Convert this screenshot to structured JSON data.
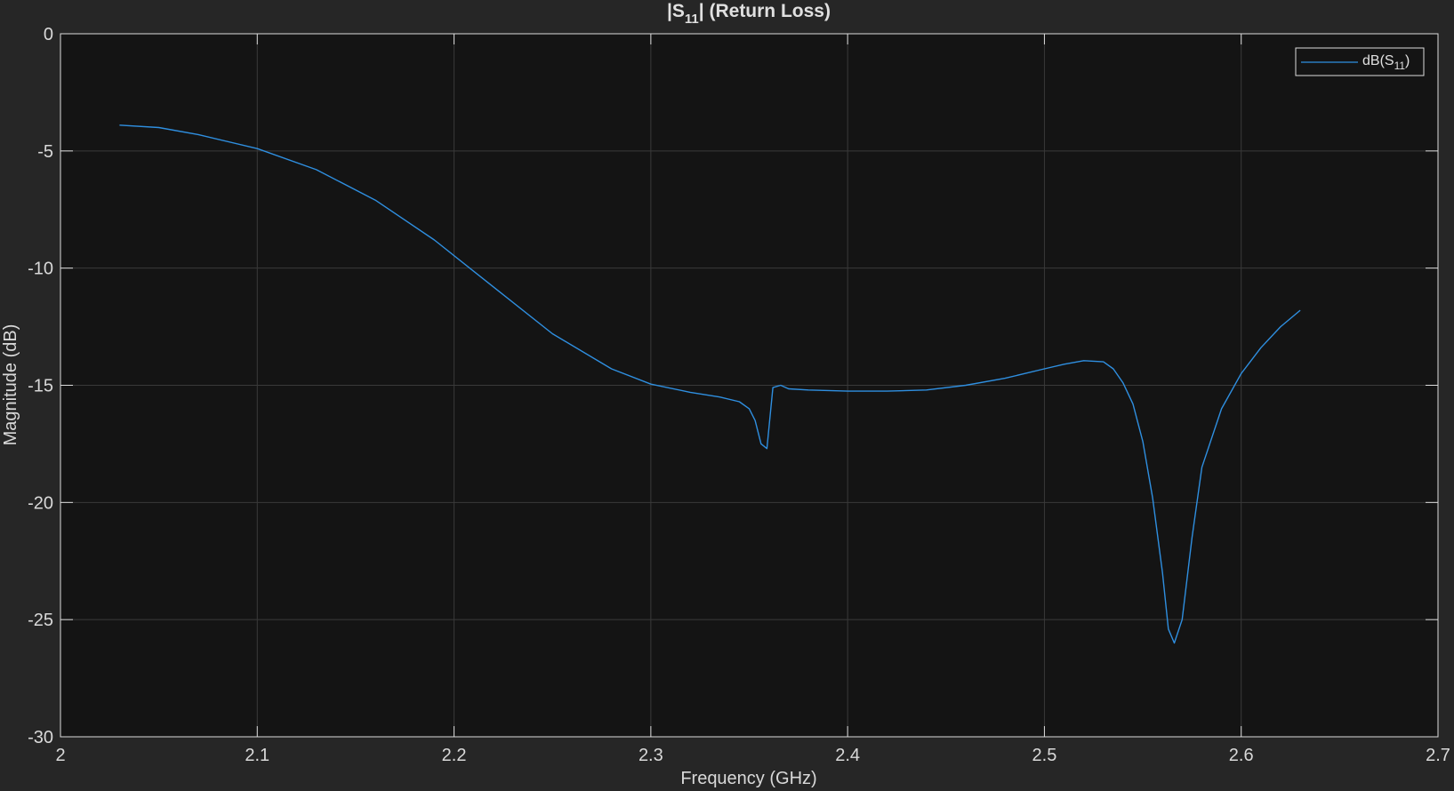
{
  "chart_data": {
    "type": "line",
    "title": {
      "base": "|S",
      "sub": "11",
      "rest": "| (Return Loss)"
    },
    "xlabel": "Frequency (GHz)",
    "ylabel": "Magnitude (dB)",
    "xlim": [
      2,
      2.7
    ],
    "ylim": [
      -30,
      0
    ],
    "xticks": [
      "2",
      "2.1",
      "2.2",
      "2.3",
      "2.4",
      "2.5",
      "2.6",
      "2.7"
    ],
    "yticks": [
      "0",
      "-5",
      "-10",
      "-15",
      "-20",
      "-25",
      "-30"
    ],
    "grid": true,
    "legend_position": "top-right",
    "series": [
      {
        "name": {
          "base": "dB(S",
          "sub": "11",
          "rest": ")"
        },
        "color": "#2f8fe0",
        "x": [
          2.03,
          2.05,
          2.07,
          2.1,
          2.13,
          2.16,
          2.19,
          2.22,
          2.25,
          2.28,
          2.3,
          2.32,
          2.335,
          2.345,
          2.35,
          2.353,
          2.356,
          2.359,
          2.362,
          2.366,
          2.37,
          2.38,
          2.4,
          2.42,
          2.44,
          2.46,
          2.48,
          2.5,
          2.51,
          2.52,
          2.53,
          2.535,
          2.54,
          2.545,
          2.55,
          2.555,
          2.56,
          2.563,
          2.566,
          2.57,
          2.575,
          2.58,
          2.59,
          2.6,
          2.61,
          2.62,
          2.63
        ],
        "y": [
          -3.9,
          -4.0,
          -4.3,
          -4.9,
          -5.8,
          -7.1,
          -8.8,
          -10.8,
          -12.8,
          -14.3,
          -14.95,
          -15.3,
          -15.5,
          -15.7,
          -16.0,
          -16.5,
          -17.5,
          -17.7,
          -15.1,
          -15.0,
          -15.15,
          -15.2,
          -15.25,
          -15.25,
          -15.2,
          -15.0,
          -14.7,
          -14.3,
          -14.1,
          -13.95,
          -14.0,
          -14.3,
          -14.9,
          -15.8,
          -17.4,
          -19.8,
          -23.0,
          -25.4,
          -26.0,
          -25.0,
          -21.5,
          -18.5,
          -16.0,
          -14.5,
          -13.4,
          -12.5,
          -11.8
        ]
      }
    ]
  }
}
